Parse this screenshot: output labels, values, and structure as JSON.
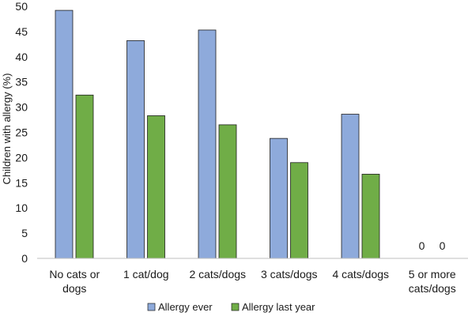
{
  "chart_data": {
    "type": "bar",
    "title": "",
    "xlabel": "",
    "ylabel": "Children with allergy (%)",
    "ylim": [
      0,
      50
    ],
    "yticks": [
      0,
      5,
      10,
      15,
      20,
      25,
      30,
      35,
      40,
      45,
      50
    ],
    "grid": false,
    "legend_position": "bottom",
    "categories": [
      [
        "No cats or",
        "dogs"
      ],
      [
        "1 cat/dog"
      ],
      [
        "2 cats/dogs"
      ],
      [
        "3 cats/dogs"
      ],
      [
        "4 cats/dogs"
      ],
      [
        "5 or more",
        "cats/dogs"
      ]
    ],
    "series": [
      {
        "name": "Allergy ever",
        "color": "#8eaadb",
        "values": [
          49.2,
          43.2,
          45.3,
          23.8,
          28.6,
          0
        ]
      },
      {
        "name": "Allergy last year",
        "color": "#70ad47",
        "values": [
          32.4,
          28.3,
          26.5,
          19.0,
          16.7,
          0
        ]
      }
    ],
    "data_labels": [
      {
        "category_index": 5,
        "series_index": 0,
        "text": "0"
      },
      {
        "category_index": 5,
        "series_index": 1,
        "text": "0"
      }
    ]
  }
}
